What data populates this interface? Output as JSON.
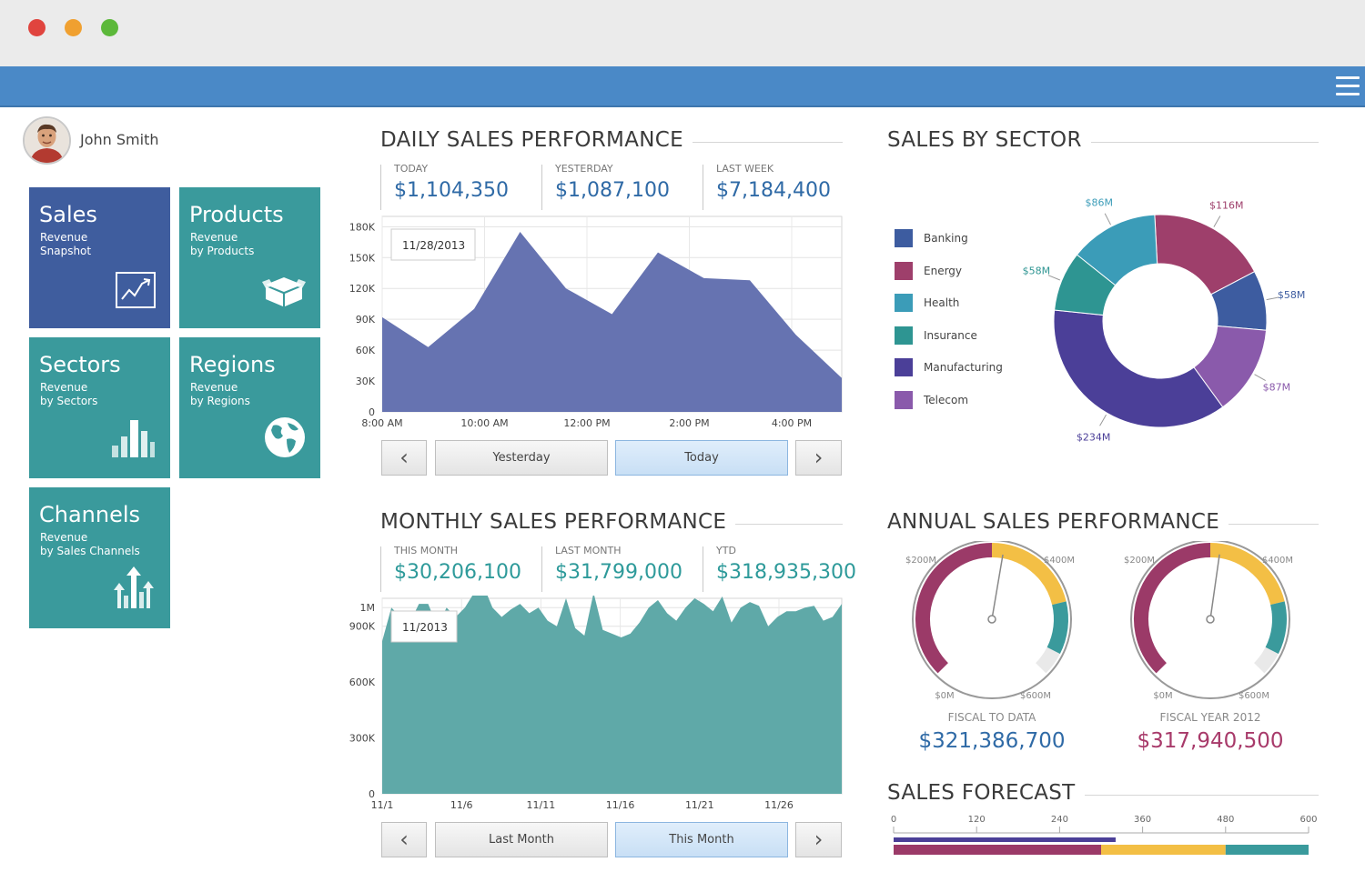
{
  "window": {
    "controls": [
      {
        "name": "close",
        "color": "#e0443e"
      },
      {
        "name": "minimize",
        "color": "#f0a030"
      },
      {
        "name": "maximize",
        "color": "#5cb83a"
      }
    ],
    "menu_icon": "hamburger-menu-icon"
  },
  "user": {
    "name": "John Smith",
    "avatar_icon": "user-avatar-icon"
  },
  "tiles": [
    {
      "title": "Sales",
      "subtitle_line1": "Revenue",
      "subtitle_line2": "Snapshot",
      "icon": "line-chart-icon",
      "color": "#3f5d9e"
    },
    {
      "title": "Products",
      "subtitle_line1": "Revenue",
      "subtitle_line2": "by Products",
      "icon": "box-icon",
      "color": "#3a9a9c"
    },
    {
      "title": "Sectors",
      "subtitle_line1": "Revenue",
      "subtitle_line2": "by Sectors",
      "icon": "bar-chart-icon",
      "color": "#3a9a9c"
    },
    {
      "title": "Regions",
      "subtitle_line1": "Revenue",
      "subtitle_line2": "by Regions",
      "icon": "globe-icon",
      "color": "#3a9a9c"
    },
    {
      "title": "Channels",
      "subtitle_line1": "Revenue",
      "subtitle_line2": "by Sales Channels",
      "icon": "arrows-up-icon",
      "color": "#3a9a9c"
    }
  ],
  "daily": {
    "title": "DAILY SALES PERFORMANCE",
    "kpis": [
      {
        "label": "TODAY",
        "value": "$1,104,350"
      },
      {
        "label": "YESTERDAY",
        "value": "$1,087,100"
      },
      {
        "label": "LAST WEEK",
        "value": "$7,184,400"
      }
    ],
    "date_badge": "11/28/2013",
    "buttons": {
      "prev": "‹",
      "left": "Yesterday",
      "right": "Today",
      "next": "›"
    }
  },
  "monthly": {
    "title": "MONTHLY SALES PERFORMANCE",
    "kpis": [
      {
        "label": "THIS MONTH",
        "value": "$30,206,100"
      },
      {
        "label": "LAST MONTH",
        "value": "$31,799,000"
      },
      {
        "label": "YTD",
        "value": "$318,935,300"
      }
    ],
    "date_badge": "11/2013",
    "buttons": {
      "prev": "‹",
      "left": "Last Month",
      "right": "This Month",
      "next": "›"
    }
  },
  "sector": {
    "title": "SALES BY SECTOR"
  },
  "annual": {
    "title": "ANNUAL SALES PERFORMANCE",
    "gauges": [
      {
        "caption": "FISCAL TO DATA",
        "value": "$321,386,700",
        "value_color": "#2f6aa6"
      },
      {
        "caption": "FISCAL YEAR 2012",
        "value": "$317,940,500",
        "value_color": "#a83a6a"
      }
    ],
    "gauge_labels": {
      "min": "$0M",
      "a": "$200M",
      "b": "$400M",
      "max": "$600M"
    }
  },
  "forecast": {
    "title": "SALES FORECAST"
  },
  "chart_data": [
    {
      "id": "daily",
      "type": "area",
      "x": [
        "8:00 AM",
        "9:00 AM",
        "10:00 AM",
        "11:00 AM",
        "12:00 PM",
        "1:00 PM",
        "2:00 PM",
        "3:00 PM",
        "4:00 PM",
        "4:30 PM",
        "5:00 PM"
      ],
      "y": [
        92000,
        63000,
        100000,
        175000,
        120000,
        95000,
        155000,
        130000,
        128000,
        75000,
        33000
      ],
      "xticks": [
        "8:00 AM",
        "10:00 AM",
        "12:00 PM",
        "2:00 PM",
        "4:00 PM"
      ],
      "yticks": [
        "0",
        "30K",
        "60K",
        "90K",
        "120K",
        "150K",
        "180K"
      ],
      "ylim": [
        0,
        190000
      ],
      "color": "#6673b1",
      "grid": true
    },
    {
      "id": "monthly",
      "type": "area",
      "x_ticks": [
        "11/1",
        "11/6",
        "11/11",
        "11/16",
        "11/21",
        "11/26"
      ],
      "y_ticks": [
        "0",
        "300K",
        "600K",
        "900K",
        "1M"
      ],
      "ylim": [
        0,
        1050000
      ],
      "values": [
        820000,
        1000000,
        950000,
        920000,
        1020000,
        1020000,
        900000,
        1000000,
        950000,
        1000000,
        1080000,
        1120000,
        1000000,
        950000,
        990000,
        1020000,
        970000,
        1000000,
        930000,
        900000,
        1050000,
        890000,
        850000,
        1080000,
        880000,
        860000,
        840000,
        860000,
        920000,
        1000000,
        1040000,
        970000,
        930000,
        1000000,
        1050000,
        1020000,
        980000,
        1060000,
        920000,
        1000000,
        1030000,
        1010000,
        900000,
        950000,
        980000,
        980000,
        1000000,
        1010000,
        930000,
        950000,
        1020000
      ],
      "color": "#5fa9a8",
      "grid": true
    },
    {
      "id": "sector",
      "type": "pie",
      "series": [
        {
          "name": "Banking",
          "value": 58,
          "label": "$58M",
          "color": "#3d5ca0"
        },
        {
          "name": "Energy",
          "value": 116,
          "label": "$116M",
          "color": "#9e3f6b"
        },
        {
          "name": "Health",
          "value": 86,
          "label": "$86M",
          "color": "#3b9cb8"
        },
        {
          "name": "Insurance",
          "value": 58,
          "label": "$58M",
          "color": "#2e9592"
        },
        {
          "name": "Manufacturing",
          "value": 234,
          "label": "$234M",
          "color": "#4b3f98"
        },
        {
          "name": "Telecom",
          "value": 87,
          "label": "$87M",
          "color": "#8a5aab"
        }
      ]
    },
    {
      "id": "annual-gauges",
      "type": "gauge",
      "range": [
        0,
        600
      ],
      "bands": [
        {
          "from": 0,
          "to": 300,
          "color": "#9b3a68"
        },
        {
          "from": 300,
          "to": 470,
          "color": "#f3bf45"
        },
        {
          "from": 470,
          "to": 560,
          "color": "#3a9a9c"
        },
        {
          "from": 560,
          "to": 600,
          "color": "#e9e9e9"
        }
      ],
      "values": [
        321.3867,
        317.9405
      ]
    },
    {
      "id": "forecast",
      "type": "bar",
      "ticks": [
        "0",
        "120",
        "240",
        "360",
        "480",
        "600"
      ],
      "xlim": [
        0,
        600
      ],
      "target": 321,
      "target_color": "#4b3f98",
      "bands": [
        {
          "from": 0,
          "to": 300,
          "color": "#9b3a68"
        },
        {
          "from": 300,
          "to": 480,
          "color": "#f3bf45"
        },
        {
          "from": 480,
          "to": 600,
          "color": "#3a9a9c"
        }
      ]
    }
  ]
}
